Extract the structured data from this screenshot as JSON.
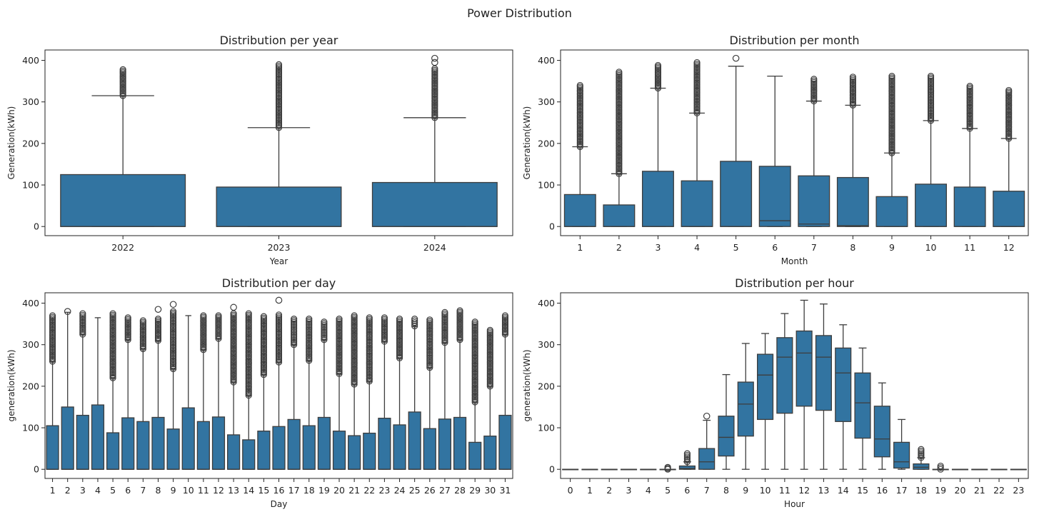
{
  "suptitle": "Power Distribution",
  "colors": {
    "box": "#3274a1",
    "line": "#3d3d3d",
    "axis": "#222222"
  },
  "chart_data": [
    {
      "type": "box",
      "title": "Distribution per year",
      "xlabel": "Year",
      "ylabel": "Generation(kWh)",
      "ylim": [
        -22,
        425
      ],
      "yticks": [
        0,
        100,
        200,
        300,
        400
      ],
      "categories": [
        "2022",
        "2023",
        "2024"
      ],
      "boxes": [
        {
          "q1": 0,
          "median": 0,
          "q3": 125,
          "whislo": 0,
          "whishi": 315,
          "outliers_range": [
            315,
            378
          ],
          "outliers": []
        },
        {
          "q1": 0,
          "median": 0,
          "q3": 95,
          "whislo": 0,
          "whishi": 238,
          "outliers_range": [
            238,
            390
          ],
          "outliers": []
        },
        {
          "q1": 0,
          "median": 0,
          "q3": 106,
          "whislo": 0,
          "whishi": 262,
          "outliers_range": [
            262,
            380
          ],
          "outliers": [
            395,
            405
          ]
        }
      ]
    },
    {
      "type": "box",
      "title": "Distribution per month",
      "xlabel": "Month",
      "ylabel": "Generation(kWh)",
      "ylim": [
        -22,
        425
      ],
      "yticks": [
        0,
        100,
        200,
        300,
        400
      ],
      "categories": [
        "1",
        "2",
        "3",
        "4",
        "5",
        "6",
        "7",
        "8",
        "9",
        "10",
        "11",
        "12"
      ],
      "boxes": [
        {
          "q1": 0,
          "median": 0,
          "q3": 77,
          "whislo": 0,
          "whishi": 192,
          "outliers_range": [
            192,
            340
          ],
          "outliers": []
        },
        {
          "q1": 0,
          "median": 0,
          "q3": 52,
          "whislo": 0,
          "whishi": 127,
          "outliers_range": [
            127,
            372
          ],
          "outliers": []
        },
        {
          "q1": 0,
          "median": 0,
          "q3": 133,
          "whislo": 0,
          "whishi": 333,
          "outliers_range": [
            333,
            388
          ],
          "outliers": []
        },
        {
          "q1": 0,
          "median": 0,
          "q3": 110,
          "whislo": 0,
          "whishi": 273,
          "outliers_range": [
            273,
            395
          ],
          "outliers": []
        },
        {
          "q1": 0,
          "median": 0,
          "q3": 157,
          "whislo": 0,
          "whishi": 386,
          "outliers_range": null,
          "outliers": [
            405
          ]
        },
        {
          "q1": 0,
          "median": 14,
          "q3": 145,
          "whislo": 0,
          "whishi": 362,
          "outliers_range": null,
          "outliers": []
        },
        {
          "q1": 0,
          "median": 6,
          "q3": 122,
          "whislo": 0,
          "whishi": 302,
          "outliers_range": [
            302,
            355
          ],
          "outliers": []
        },
        {
          "q1": 0,
          "median": 2,
          "q3": 118,
          "whislo": 0,
          "whishi": 292,
          "outliers_range": [
            292,
            360
          ],
          "outliers": []
        },
        {
          "q1": 0,
          "median": 0,
          "q3": 72,
          "whislo": 0,
          "whishi": 177,
          "outliers_range": [
            177,
            362
          ],
          "outliers": []
        },
        {
          "q1": 0,
          "median": 0,
          "q3": 102,
          "whislo": 0,
          "whishi": 255,
          "outliers_range": [
            255,
            362
          ],
          "outliers": []
        },
        {
          "q1": 0,
          "median": 0,
          "q3": 95,
          "whislo": 0,
          "whishi": 236,
          "outliers_range": [
            236,
            338
          ],
          "outliers": []
        },
        {
          "q1": 0,
          "median": 0,
          "q3": 85,
          "whislo": 0,
          "whishi": 212,
          "outliers_range": [
            212,
            328
          ],
          "outliers": []
        }
      ]
    },
    {
      "type": "box",
      "title": "Distribution per day",
      "xlabel": "Day",
      "ylabel": "generation(kWh)",
      "ylim": [
        -22,
        425
      ],
      "yticks": [
        0,
        100,
        200,
        300,
        400
      ],
      "categories": [
        "1",
        "2",
        "3",
        "4",
        "5",
        "6",
        "7",
        "8",
        "9",
        "10",
        "11",
        "12",
        "13",
        "14",
        "15",
        "16",
        "17",
        "18",
        "19",
        "20",
        "21",
        "22",
        "23",
        "24",
        "25",
        "26",
        "27",
        "28",
        "29",
        "30",
        "31"
      ],
      "boxes": [
        {
          "q1": 0,
          "median": 0,
          "q3": 105,
          "whislo": 0,
          "whishi": 260,
          "outliers_range": [
            260,
            370
          ],
          "outliers": []
        },
        {
          "q1": 0,
          "median": 0,
          "q3": 150,
          "whislo": 0,
          "whishi": 378,
          "outliers_range": null,
          "outliers": [
            380
          ]
        },
        {
          "q1": 0,
          "median": 0,
          "q3": 130,
          "whislo": 0,
          "whishi": 325,
          "outliers_range": [
            325,
            375
          ],
          "outliers": []
        },
        {
          "q1": 0,
          "median": 0,
          "q3": 155,
          "whislo": 0,
          "whishi": 365,
          "outliers_range": null,
          "outliers": []
        },
        {
          "q1": 0,
          "median": 0,
          "q3": 88,
          "whislo": 0,
          "whishi": 220,
          "outliers_range": [
            220,
            375
          ],
          "outliers": []
        },
        {
          "q1": 0,
          "median": 0,
          "q3": 124,
          "whislo": 0,
          "whishi": 312,
          "outliers_range": [
            312,
            365
          ],
          "outliers": []
        },
        {
          "q1": 0,
          "median": 0,
          "q3": 115,
          "whislo": 0,
          "whishi": 290,
          "outliers_range": [
            290,
            358
          ],
          "outliers": []
        },
        {
          "q1": 0,
          "median": 0,
          "q3": 125,
          "whislo": 0,
          "whishi": 310,
          "outliers_range": [
            310,
            362
          ],
          "outliers": [
            385
          ]
        },
        {
          "q1": 0,
          "median": 0,
          "q3": 97,
          "whislo": 0,
          "whishi": 242,
          "outliers_range": [
            242,
            380
          ],
          "outliers": [
            397
          ]
        },
        {
          "q1": 0,
          "median": 0,
          "q3": 148,
          "whislo": 0,
          "whishi": 370,
          "outliers_range": null,
          "outliers": []
        },
        {
          "q1": 0,
          "median": 0,
          "q3": 115,
          "whislo": 0,
          "whishi": 288,
          "outliers_range": [
            288,
            370
          ],
          "outliers": []
        },
        {
          "q1": 0,
          "median": 0,
          "q3": 126,
          "whislo": 0,
          "whishi": 315,
          "outliers_range": [
            315,
            370
          ],
          "outliers": []
        },
        {
          "q1": 0,
          "median": 0,
          "q3": 83,
          "whislo": 0,
          "whishi": 210,
          "outliers_range": [
            210,
            375
          ],
          "outliers": [
            390
          ]
        },
        {
          "q1": 0,
          "median": 0,
          "q3": 71,
          "whislo": 0,
          "whishi": 178,
          "outliers_range": [
            178,
            375
          ],
          "outliers": []
        },
        {
          "q1": 0,
          "median": 0,
          "q3": 92,
          "whislo": 0,
          "whishi": 228,
          "outliers_range": [
            228,
            368
          ],
          "outliers": []
        },
        {
          "q1": 0,
          "median": 0,
          "q3": 103,
          "whislo": 0,
          "whishi": 258,
          "outliers_range": [
            258,
            372
          ],
          "outliers": [
            407
          ]
        },
        {
          "q1": 0,
          "median": 0,
          "q3": 120,
          "whislo": 0,
          "whishi": 300,
          "outliers_range": [
            300,
            362
          ],
          "outliers": []
        },
        {
          "q1": 0,
          "median": 0,
          "q3": 105,
          "whislo": 0,
          "whishi": 262,
          "outliers_range": [
            262,
            362
          ],
          "outliers": []
        },
        {
          "q1": 0,
          "median": 0,
          "q3": 125,
          "whislo": 0,
          "whishi": 312,
          "outliers_range": [
            312,
            355
          ],
          "outliers": []
        },
        {
          "q1": 0,
          "median": 0,
          "q3": 92,
          "whislo": 0,
          "whishi": 230,
          "outliers_range": [
            230,
            362
          ],
          "outliers": []
        },
        {
          "q1": 0,
          "median": 0,
          "q3": 81,
          "whislo": 0,
          "whishi": 205,
          "outliers_range": [
            205,
            370
          ],
          "outliers": []
        },
        {
          "q1": 0,
          "median": 0,
          "q3": 87,
          "whislo": 0,
          "whishi": 212,
          "outliers_range": [
            212,
            365
          ],
          "outliers": []
        },
        {
          "q1": 0,
          "median": 0,
          "q3": 123,
          "whislo": 0,
          "whishi": 308,
          "outliers_range": [
            308,
            365
          ],
          "outliers": []
        },
        {
          "q1": 0,
          "median": 0,
          "q3": 107,
          "whislo": 0,
          "whishi": 268,
          "outliers_range": [
            268,
            362
          ],
          "outliers": []
        },
        {
          "q1": 0,
          "median": 0,
          "q3": 138,
          "whislo": 0,
          "whishi": 345,
          "outliers_range": [
            345,
            362
          ],
          "outliers": []
        },
        {
          "q1": 0,
          "median": 0,
          "q3": 98,
          "whislo": 0,
          "whishi": 245,
          "outliers_range": [
            245,
            360
          ],
          "outliers": []
        },
        {
          "q1": 0,
          "median": 0,
          "q3": 121,
          "whislo": 0,
          "whishi": 305,
          "outliers_range": [
            305,
            378
          ],
          "outliers": []
        },
        {
          "q1": 0,
          "median": 0,
          "q3": 125,
          "whislo": 0,
          "whishi": 312,
          "outliers_range": [
            312,
            382
          ],
          "outliers": []
        },
        {
          "q1": 0,
          "median": 0,
          "q3": 65,
          "whislo": 0,
          "whishi": 162,
          "outliers_range": [
            162,
            355
          ],
          "outliers": []
        },
        {
          "q1": 0,
          "median": 0,
          "q3": 80,
          "whislo": 0,
          "whishi": 200,
          "outliers_range": [
            200,
            335
          ],
          "outliers": []
        },
        {
          "q1": 0,
          "median": 0,
          "q3": 130,
          "whislo": 0,
          "whishi": 325,
          "outliers_range": [
            325,
            370
          ],
          "outliers": []
        }
      ]
    },
    {
      "type": "box",
      "title": "Distribution per hour",
      "xlabel": "Hour",
      "ylabel": "generation(kWh)",
      "ylim": [
        -22,
        425
      ],
      "yticks": [
        0,
        100,
        200,
        300,
        400
      ],
      "categories": [
        "0",
        "1",
        "2",
        "3",
        "4",
        "5",
        "6",
        "7",
        "8",
        "9",
        "10",
        "11",
        "12",
        "13",
        "14",
        "15",
        "16",
        "17",
        "18",
        "19",
        "20",
        "21",
        "22",
        "23"
      ],
      "boxes": [
        {
          "q1": 0,
          "median": 0,
          "q3": 0,
          "whislo": 0,
          "whishi": 0,
          "outliers_range": null,
          "outliers": []
        },
        {
          "q1": 0,
          "median": 0,
          "q3": 0,
          "whislo": 0,
          "whishi": 0,
          "outliers_range": null,
          "outliers": []
        },
        {
          "q1": 0,
          "median": 0,
          "q3": 0,
          "whislo": 0,
          "whishi": 0,
          "outliers_range": null,
          "outliers": []
        },
        {
          "q1": 0,
          "median": 0,
          "q3": 0,
          "whislo": 0,
          "whishi": 0,
          "outliers_range": null,
          "outliers": []
        },
        {
          "q1": 0,
          "median": 0,
          "q3": 0,
          "whislo": 0,
          "whishi": 0,
          "outliers_range": null,
          "outliers": []
        },
        {
          "q1": 0,
          "median": 0,
          "q3": 0,
          "whislo": 0,
          "whishi": 0,
          "outliers_range": [
            0,
            5
          ],
          "outliers": []
        },
        {
          "q1": 0,
          "median": 2,
          "q3": 8,
          "whislo": 0,
          "whishi": 18,
          "outliers_range": [
            18,
            38
          ],
          "outliers": []
        },
        {
          "q1": 0,
          "median": 18,
          "q3": 50,
          "whislo": 0,
          "whishi": 118,
          "outliers_range": null,
          "outliers": [
            128
          ]
        },
        {
          "q1": 32,
          "median": 77,
          "q3": 128,
          "whislo": 0,
          "whishi": 228,
          "outliers_range": null,
          "outliers": []
        },
        {
          "q1": 80,
          "median": 157,
          "q3": 210,
          "whislo": 0,
          "whishi": 303,
          "outliers_range": null,
          "outliers": []
        },
        {
          "q1": 120,
          "median": 227,
          "q3": 277,
          "whislo": 0,
          "whishi": 327,
          "outliers_range": null,
          "outliers": []
        },
        {
          "q1": 135,
          "median": 270,
          "q3": 317,
          "whislo": 0,
          "whishi": 375,
          "outliers_range": null,
          "outliers": []
        },
        {
          "q1": 152,
          "median": 280,
          "q3": 333,
          "whislo": 0,
          "whishi": 407,
          "outliers_range": null,
          "outliers": []
        },
        {
          "q1": 142,
          "median": 270,
          "q3": 322,
          "whislo": 0,
          "whishi": 398,
          "outliers_range": null,
          "outliers": []
        },
        {
          "q1": 115,
          "median": 232,
          "q3": 292,
          "whislo": 0,
          "whishi": 348,
          "outliers_range": null,
          "outliers": []
        },
        {
          "q1": 75,
          "median": 160,
          "q3": 232,
          "whislo": 0,
          "whishi": 292,
          "outliers_range": null,
          "outliers": []
        },
        {
          "q1": 30,
          "median": 73,
          "q3": 152,
          "whislo": 0,
          "whishi": 208,
          "outliers_range": null,
          "outliers": []
        },
        {
          "q1": 3,
          "median": 18,
          "q3": 65,
          "whislo": 0,
          "whishi": 120,
          "outliers_range": null,
          "outliers": []
        },
        {
          "q1": 0,
          "median": 5,
          "q3": 13,
          "whislo": 0,
          "whishi": 28,
          "outliers_range": [
            28,
            48
          ],
          "outliers": []
        },
        {
          "q1": 0,
          "median": 0,
          "q3": 0,
          "whislo": 0,
          "whishi": 0,
          "outliers_range": [
            0,
            8
          ],
          "outliers": []
        },
        {
          "q1": 0,
          "median": 0,
          "q3": 0,
          "whislo": 0,
          "whishi": 0,
          "outliers_range": null,
          "outliers": []
        },
        {
          "q1": 0,
          "median": 0,
          "q3": 0,
          "whislo": 0,
          "whishi": 0,
          "outliers_range": null,
          "outliers": []
        },
        {
          "q1": 0,
          "median": 0,
          "q3": 0,
          "whislo": 0,
          "whishi": 0,
          "outliers_range": null,
          "outliers": []
        },
        {
          "q1": 0,
          "median": 0,
          "q3": 0,
          "whislo": 0,
          "whishi": 0,
          "outliers_range": null,
          "outliers": []
        }
      ]
    }
  ]
}
